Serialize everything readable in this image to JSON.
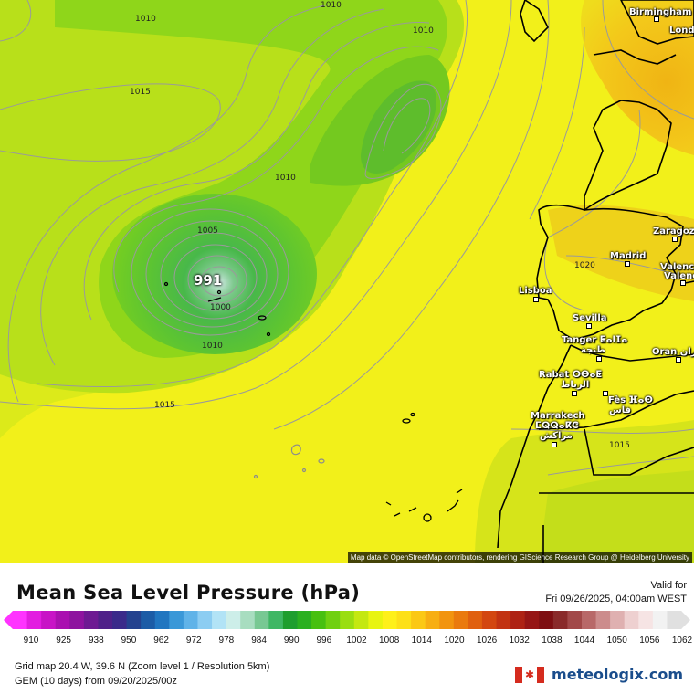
{
  "map": {
    "attribution": "Map data © OpenStreetMap contributors, rendering GIScience Research Group @ Heidelberg University",
    "low_pressure_label": "991",
    "isobar_labels": [
      "1010",
      "1010",
      "1015",
      "1010",
      "1005",
      "1000",
      "1010",
      "1015",
      "1020",
      "1015"
    ],
    "cities": [
      "Birmingham",
      "Lond",
      "Zaragoza",
      "Madrid",
      "Valenc",
      "Valenc",
      "Lisboa",
      "Sevilla",
      "Tanger ⵟⴰⵏⵊⴰ",
      "طنجة",
      "Oran وهران",
      "Rabat ⵔⴱⴰⵟ",
      "الرباط",
      "Fès ⴼⴰⵙ",
      "فاس",
      "Marrakech",
      "ⵎⵕⵕⴰⴽⵛ",
      "مراكش"
    ]
  },
  "footer": {
    "title": "Mean Sea Level Pressure (hPa)",
    "valid_label": "Valid for",
    "valid_time": "Fri 09/26/2025, 04:00am WEST",
    "scale_ticks": [
      "910",
      "925",
      "938",
      "950",
      "962",
      "972",
      "978",
      "984",
      "990",
      "996",
      "1002",
      "1008",
      "1014",
      "1020",
      "1026",
      "1032",
      "1038",
      "1044",
      "1050",
      "1056",
      "1062"
    ],
    "scale_colors": [
      "#ff33ff",
      "#e21de0",
      "#c814c6",
      "#aa10b0",
      "#8e149f",
      "#6d1a92",
      "#4f2189",
      "#3a2a8a",
      "#24428f",
      "#1c5ca6",
      "#2176c0",
      "#3a98d8",
      "#60b3e8",
      "#8ccdf2",
      "#b2e3f6",
      "#cdeee9",
      "#a8ddc0",
      "#78c893",
      "#3fb764",
      "#1e9e2e",
      "#2bb020",
      "#48c010",
      "#70d010",
      "#9ade10",
      "#c4e810",
      "#e8f410",
      "#fef01a",
      "#fde018",
      "#fbc815",
      "#f7ae12",
      "#f2940f",
      "#ea7a0e",
      "#e0600f",
      "#d34710",
      "#c23312",
      "#ae2214",
      "#961515",
      "#7e0f12",
      "#8a2a2a",
      "#a24848",
      "#b86868",
      "#cc8c8c",
      "#dfb0b0",
      "#eed0d0",
      "#f6e4e4",
      "#f2f2f2",
      "#e0e0e0"
    ],
    "grid_info": "Grid map 20.4 W, 39.6 N (Zoom level 1 / Resolution 5km)",
    "model_info": "GEM (10 days) from 09/20/2025/00z",
    "brand": "meteologix.com"
  }
}
